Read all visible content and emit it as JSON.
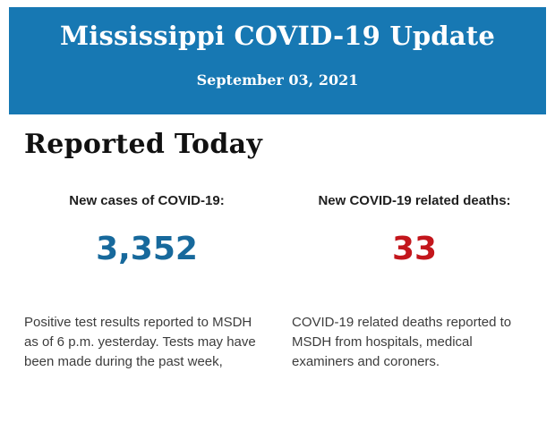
{
  "colors": {
    "header_bg": "#1778b3",
    "header_text": "#ffffff",
    "heading_text": "#111111",
    "label_text": "#1f1f1f",
    "body_text": "#3c3c3c",
    "cases_number": "#17699c",
    "deaths_number": "#c3161c"
  },
  "header": {
    "title": "Mississippi COVID-19 Update",
    "date": "September 03, 2021"
  },
  "main": {
    "section_title": "Reported Today",
    "stats": [
      {
        "label": "New cases of COVID-19:",
        "value": "3,352",
        "description": "Positive test results reported to MSDH as of 6 p.m. yesterday. Tests may have been made during the past week,"
      },
      {
        "label": "New COVID-19 related deaths:",
        "value": "33",
        "description": "COVID-19 related deaths reported to MSDH from hospitals, medical examiners and coroners."
      }
    ]
  }
}
